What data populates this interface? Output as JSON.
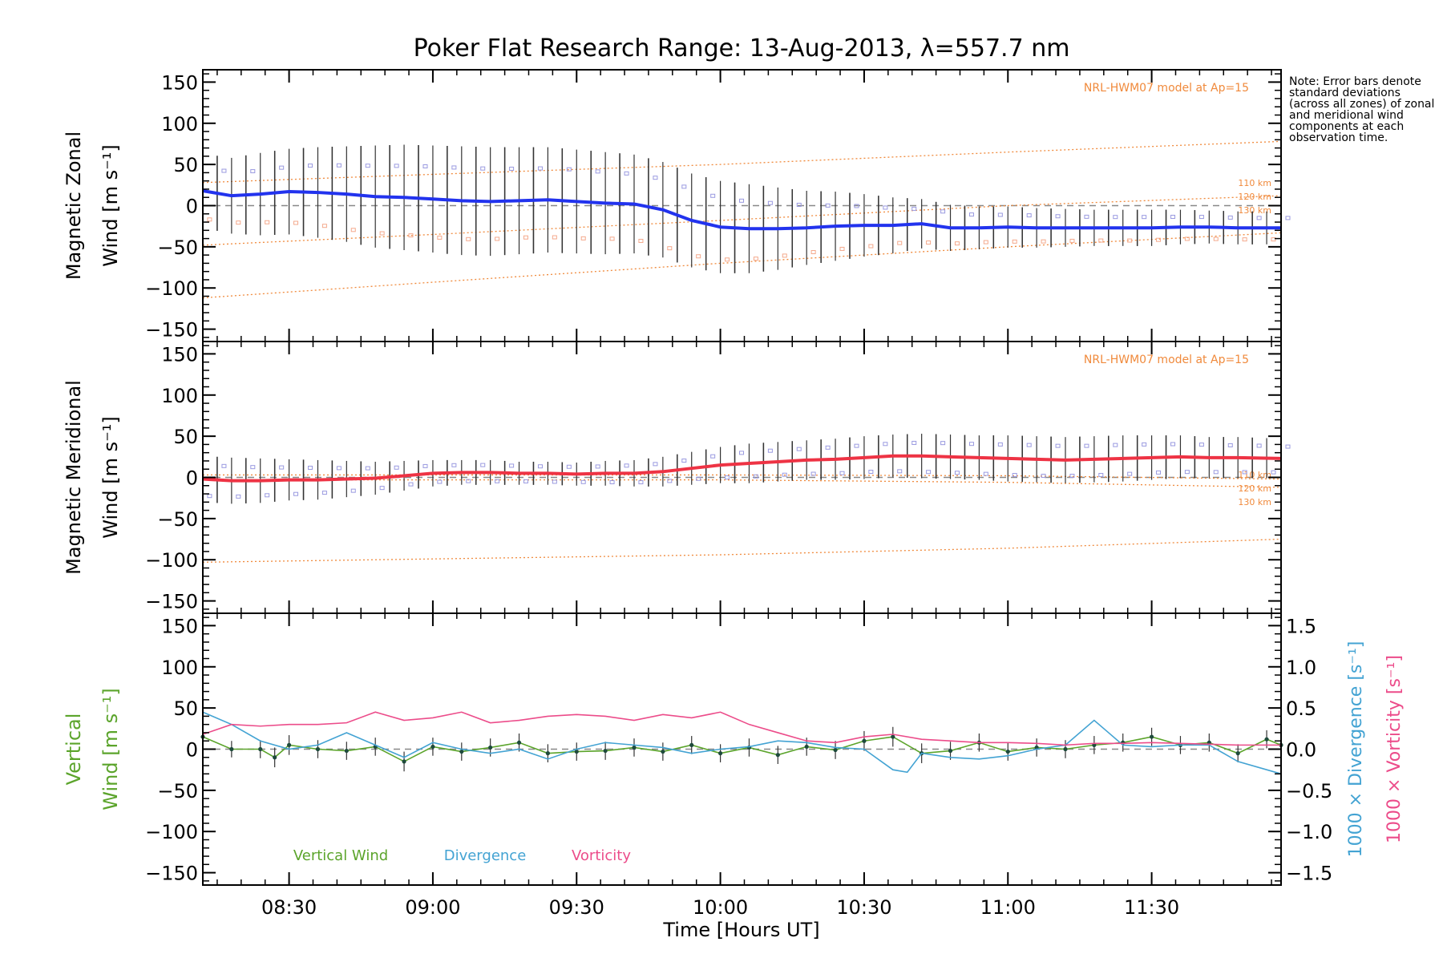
{
  "chart_data": {
    "type": "line",
    "title": "Poker Flat Research Range: 13-Aug-2013, λ=557.7 nm",
    "note": "Note: Error bars denote standard deviations (across all zones) of zonal and meridional wind components at each observation time.",
    "xlabel": "Time [Hours UT]",
    "xlim": [
      8.2,
      11.95
    ],
    "x_ticks": [
      "08:30",
      "09:00",
      "09:30",
      "10:00",
      "10:30",
      "11:00",
      "11:30"
    ],
    "x_tick_values": [
      8.5,
      9.0,
      9.5,
      10.0,
      10.5,
      11.0,
      11.5
    ],
    "y_ticks": [
      "150",
      "100",
      "50",
      "0",
      "−50",
      "−100",
      "−150"
    ],
    "y_tick_values": [
      150,
      100,
      50,
      0,
      -50,
      -100,
      -150
    ],
    "ylim": [
      -165,
      165
    ],
    "model_label": "NRL-HWM07 model at Ap=15",
    "colors": {
      "zonal": "#2233ee",
      "meridional": "#ee3344",
      "vertical": "#5ba42b",
      "divergence": "#43a3d3",
      "vorticity": "#ec4c8a",
      "model": "#f08a3c",
      "scatter": "#9a9ae0",
      "zero": "#888888"
    },
    "panels": [
      {
        "name": "zonal",
        "ylabel_line1": "Magnetic Zonal",
        "ylabel_line2": "Wind [m s⁻¹]",
        "show_model_label": true,
        "model_levels": [
          "110 km",
          "120 km",
          "130 km"
        ],
        "model_curves": [
          {
            "x": [
              8.2,
              9.0,
              10.0,
              11.0,
              11.95
            ],
            "values": [
              -112,
              -93,
              -70,
              -50,
              -33
            ]
          },
          {
            "x": [
              8.2,
              9.0,
              10.0,
              11.0,
              11.95
            ],
            "values": [
              -48,
              -35,
              -18,
              0,
              12
            ]
          },
          {
            "x": [
              8.2,
              9.0,
              10.0,
              11.0,
              11.95
            ],
            "values": [
              28,
              38,
              50,
              65,
              78
            ]
          }
        ],
        "series": [
          {
            "name": "Magnetic Zonal Wind",
            "color": "#2233ee",
            "x": [
              8.2,
              8.3,
              8.4,
              8.5,
              8.6,
              8.7,
              8.8,
              8.9,
              9.0,
              9.1,
              9.2,
              9.3,
              9.4,
              9.5,
              9.6,
              9.7,
              9.8,
              9.9,
              10.0,
              10.1,
              10.2,
              10.3,
              10.4,
              10.5,
              10.6,
              10.7,
              10.8,
              10.9,
              11.0,
              11.1,
              11.2,
              11.3,
              11.4,
              11.5,
              11.6,
              11.7,
              11.8,
              11.95
            ],
            "values": [
              18,
              12,
              14,
              17,
              16,
              14,
              11,
              10,
              8,
              6,
              5,
              6,
              7,
              5,
              3,
              2,
              -5,
              -18,
              -26,
              -28,
              -28,
              -27,
              -25,
              -24,
              -24,
              -22,
              -27,
              -27,
              -26,
              -27,
              -27,
              -27,
              -27,
              -27,
              -26,
              -26,
              -27,
              -27
            ],
            "error": [
              45,
              46,
              50,
              52,
              55,
              58,
              62,
              64,
              65,
              66,
              66,
              65,
              64,
              63,
              62,
              60,
              58,
              57,
              56,
              54,
              50,
              45,
              42,
              38,
              34,
              30,
              28,
              26,
              25,
              24,
              23,
              22,
              22,
              22,
              21,
              20,
              20,
              20
            ]
          }
        ]
      },
      {
        "name": "meridional",
        "ylabel_line1": "Magnetic Meridional",
        "ylabel_line2": "Wind [m s⁻¹]",
        "show_model_label": true,
        "model_levels": [
          "110 km",
          "120 km",
          "130 km"
        ],
        "model_curves": [
          {
            "x": [
              8.2,
              9.0,
              10.0,
              11.0,
              11.95
            ],
            "values": [
              -103,
              -99,
              -94,
              -86,
              -75
            ]
          },
          {
            "x": [
              8.2,
              9.0,
              10.0,
              11.0,
              11.95
            ],
            "values": [
              -3,
              -3,
              -3,
              -6,
              -12
            ]
          },
          {
            "x": [
              8.2,
              9.0,
              10.0,
              11.0,
              11.95
            ],
            "values": [
              3,
              3,
              3,
              2,
              -2
            ]
          }
        ],
        "series": [
          {
            "name": "Magnetic Meridional Wind",
            "color": "#ee3344",
            "x": [
              8.2,
              8.3,
              8.4,
              8.5,
              8.6,
              8.7,
              8.8,
              8.9,
              9.0,
              9.1,
              9.2,
              9.3,
              9.4,
              9.5,
              9.6,
              9.7,
              9.8,
              9.9,
              10.0,
              10.1,
              10.2,
              10.3,
              10.4,
              10.5,
              10.6,
              10.7,
              10.8,
              10.9,
              11.0,
              11.1,
              11.2,
              11.3,
              11.4,
              11.5,
              11.6,
              11.7,
              11.8,
              11.95
            ],
            "values": [
              -2,
              -4,
              -4,
              -3,
              -3,
              -2,
              -1,
              2,
              5,
              6,
              6,
              5,
              5,
              4,
              5,
              5,
              7,
              11,
              15,
              17,
              19,
              21,
              22,
              24,
              26,
              26,
              25,
              24,
              23,
              22,
              21,
              22,
              23,
              24,
              25,
              24,
              24,
              23
            ],
            "error": [
              28,
              28,
              27,
              25,
              24,
              22,
              20,
              18,
              16,
              15,
              15,
              14,
              14,
              14,
              15,
              16,
              18,
              20,
              22,
              24,
              24,
              24,
              25,
              26,
              26,
              27,
              27,
              27,
              28,
              28,
              28,
              28,
              28,
              27,
              26,
              25,
              25,
              24
            ]
          }
        ]
      },
      {
        "name": "vertical",
        "ylabel_line1": "Vertical",
        "ylabel_line2": "Wind [m s⁻¹]",
        "show_model_label": false,
        "right_axis": {
          "label_div": "1000 × Divergence [s⁻¹]",
          "label_vort": "1000 × Vorticity [s⁻¹]",
          "ticks": [
            "1.5",
            "1.0",
            "0.5",
            "0.0",
            "−0.5",
            "−1.0",
            "−1.5"
          ],
          "tick_values": [
            1.5,
            1.0,
            0.5,
            0.0,
            -0.5,
            -1.0,
            -1.5
          ],
          "ylim": [
            -1.65,
            1.65
          ]
        },
        "legend": [
          "Vertical Wind",
          "Divergence",
          "Vorticity"
        ],
        "series": [
          {
            "name": "Vertical Wind",
            "color": "#5ba42b",
            "axis": "left",
            "x": [
              8.2,
              8.3,
              8.4,
              8.45,
              8.5,
              8.6,
              8.7,
              8.8,
              8.9,
              9.0,
              9.1,
              9.2,
              9.3,
              9.4,
              9.5,
              9.6,
              9.7,
              9.8,
              9.9,
              10.0,
              10.1,
              10.2,
              10.3,
              10.4,
              10.5,
              10.6,
              10.7,
              10.8,
              10.9,
              11.0,
              11.1,
              11.2,
              11.3,
              11.4,
              11.5,
              11.6,
              11.7,
              11.8,
              11.9,
              11.95
            ],
            "values": [
              15,
              0,
              0,
              -10,
              5,
              0,
              -2,
              3,
              -15,
              3,
              -3,
              2,
              8,
              -5,
              -3,
              -2,
              2,
              -3,
              5,
              -5,
              2,
              -7,
              3,
              -1,
              10,
              15,
              -5,
              -2,
              8,
              -3,
              2,
              0,
              5,
              8,
              15,
              5,
              8,
              -5,
              12,
              5
            ],
            "error": [
              10,
              10,
              11,
              12,
              12,
              11,
              11,
              11,
              12,
              11,
              11,
              11,
              11,
              11,
              11,
              11,
              11,
              11,
              11,
              11,
              11,
              11,
              11,
              11,
              12,
              12,
              12,
              11,
              11,
              11,
              11,
              11,
              11,
              11,
              11,
              11,
              11,
              11,
              11,
              11
            ]
          },
          {
            "name": "Divergence",
            "color": "#43a3d3",
            "axis": "right",
            "x": [
              8.2,
              8.3,
              8.4,
              8.5,
              8.6,
              8.7,
              8.8,
              8.9,
              9.0,
              9.1,
              9.2,
              9.3,
              9.4,
              9.5,
              9.6,
              9.7,
              9.8,
              9.9,
              10.0,
              10.1,
              10.2,
              10.3,
              10.4,
              10.5,
              10.6,
              10.65,
              10.7,
              10.8,
              10.9,
              11.0,
              11.1,
              11.2,
              11.3,
              11.35,
              11.4,
              11.5,
              11.6,
              11.7,
              11.8,
              11.95
            ],
            "values": [
              0.45,
              0.3,
              0.1,
              0.0,
              0.05,
              0.2,
              0.05,
              -0.1,
              0.08,
              0.0,
              -0.05,
              0.0,
              -0.12,
              0.0,
              0.08,
              0.05,
              0.02,
              -0.05,
              0.0,
              0.03,
              0.1,
              0.08,
              0.02,
              0.0,
              -0.25,
              -0.28,
              -0.05,
              -0.1,
              -0.12,
              -0.08,
              0.0,
              0.05,
              0.35,
              0.2,
              0.05,
              0.03,
              0.05,
              0.05,
              -0.15,
              -0.3
            ]
          },
          {
            "name": "Vorticity",
            "color": "#ec4c8a",
            "axis": "right",
            "x": [
              8.2,
              8.3,
              8.4,
              8.5,
              8.6,
              8.7,
              8.8,
              8.9,
              9.0,
              9.1,
              9.2,
              9.3,
              9.4,
              9.5,
              9.6,
              9.7,
              9.8,
              9.9,
              10.0,
              10.1,
              10.2,
              10.3,
              10.4,
              10.5,
              10.6,
              10.7,
              10.8,
              10.9,
              11.0,
              11.1,
              11.2,
              11.3,
              11.4,
              11.5,
              11.6,
              11.7,
              11.8,
              11.95
            ],
            "values": [
              0.18,
              0.3,
              0.28,
              0.3,
              0.3,
              0.32,
              0.45,
              0.35,
              0.38,
              0.45,
              0.32,
              0.35,
              0.4,
              0.42,
              0.4,
              0.35,
              0.42,
              0.38,
              0.45,
              0.3,
              0.2,
              0.1,
              0.08,
              0.15,
              0.18,
              0.12,
              0.1,
              0.08,
              0.08,
              0.07,
              0.05,
              0.07,
              0.07,
              0.08,
              0.07,
              0.06,
              0.05,
              0.05
            ]
          }
        ]
      }
    ]
  }
}
